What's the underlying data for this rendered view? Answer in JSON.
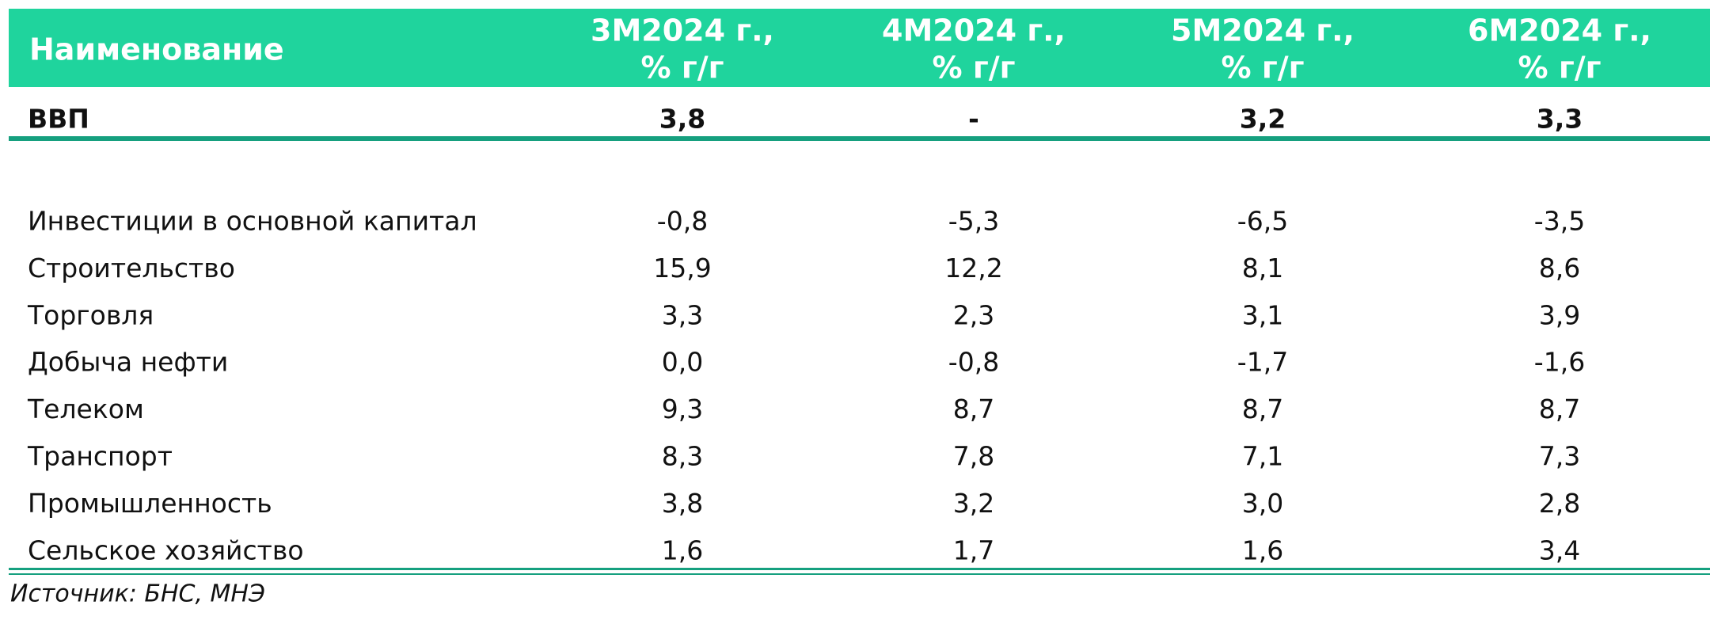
{
  "table": {
    "header": {
      "name": "Наименование",
      "columns": [
        [
          "3M2024 г.,",
          "% г/г"
        ],
        [
          "4M2024 г.,",
          "% г/г"
        ],
        [
          "5M2024 г.,",
          "% г/г"
        ],
        [
          "6M2024 г.,",
          "% г/г"
        ]
      ]
    },
    "gdp": {
      "label": "ВВП",
      "values": [
        "3,8",
        "-",
        "3,2",
        "3,3"
      ]
    },
    "rows": [
      {
        "label": "Инвестиции в основной капитал",
        "values": [
          "-0,8",
          "-5,3",
          "-6,5",
          "-3,5"
        ]
      },
      {
        "label": "Строительство",
        "values": [
          "15,9",
          "12,2",
          "8,1",
          "8,6"
        ]
      },
      {
        "label": "Торговля",
        "values": [
          "3,3",
          "2,3",
          "3,1",
          "3,9"
        ]
      },
      {
        "label": "Добыча нефти",
        "values": [
          "0,0",
          "-0,8",
          "-1,7",
          "-1,6"
        ]
      },
      {
        "label": "Телеком",
        "values": [
          "9,3",
          "8,7",
          "8,7",
          "8,7"
        ]
      },
      {
        "label": "Транспорт",
        "values": [
          "8,3",
          "7,8",
          "7,1",
          "7,3"
        ]
      },
      {
        "label": "Промышленность",
        "values": [
          "3,8",
          "3,2",
          "3,0",
          "2,8"
        ]
      },
      {
        "label": "Сельское хозяйство",
        "values": [
          "1,6",
          "1,7",
          "1,6",
          "3,4"
        ]
      }
    ]
  },
  "source": "Источник: БНС, МНЭ"
}
